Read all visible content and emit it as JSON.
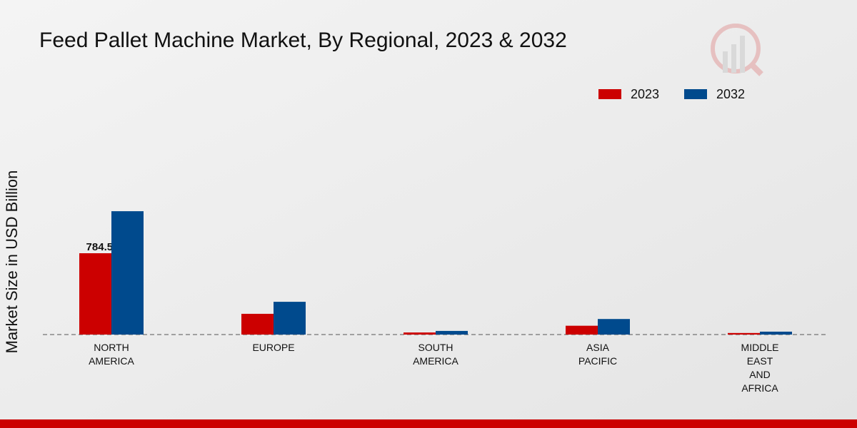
{
  "chart_data": {
    "type": "bar",
    "title": "Feed Pallet Machine Market, By Regional, 2023 & 2032",
    "y_label": "Market Size in USD Billion",
    "categories": [
      "NORTH AMERICA",
      "EUROPE",
      "SOUTH AMERICA",
      "ASIA PACIFIC",
      "MIDDLE EAST AND AFRICA"
    ],
    "series": [
      {
        "name": "2023",
        "color": "#cc0000",
        "values": [
          784.55,
          200,
          20,
          85,
          15
        ]
      },
      {
        "name": "2032",
        "color": "#004a8d",
        "values": [
          1190,
          316,
          35,
          150,
          28
        ]
      }
    ],
    "legend": "top-right"
  }
}
